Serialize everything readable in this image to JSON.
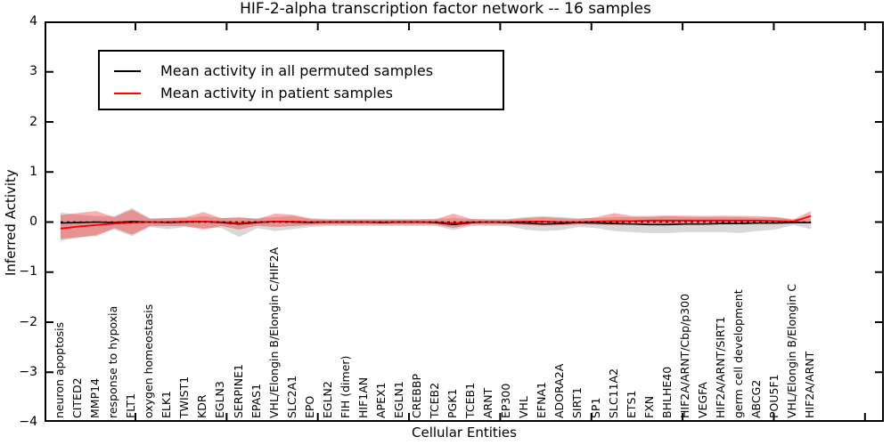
{
  "title": "HIF-2-alpha transcription factor network -- 16 samples",
  "axes": {
    "ylabel": "Inferred Activity",
    "xlabel": "Cellular Entities",
    "yticks": [
      "4",
      "3",
      "2",
      "1",
      "0",
      "−1",
      "−2",
      "−3",
      "−4"
    ]
  },
  "legend": {
    "items": [
      {
        "label": "Mean activity in all permuted samples",
        "color": "#000000"
      },
      {
        "label": "Mean activity in patient samples",
        "color": "#ff0000"
      }
    ]
  },
  "chart_data": {
    "type": "line",
    "title": "HIF-2-alpha transcription factor network -- 16 samples",
    "xlabel": "Cellular Entities",
    "ylabel": "Inferred Activity",
    "ylim": [
      -4,
      4
    ],
    "grid": false,
    "legend_position": "upper left",
    "zero_line": true,
    "categories": [
      "neuron apoptosis",
      "CITED2",
      "MMP14",
      "response to hypoxia",
      "FLT1",
      "oxygen homeostasis",
      "ELK1",
      "TWIST1",
      "KDR",
      "EGLN3",
      "SERPINE1",
      "EPAS1",
      "VHL/Elongin B/Elongin C/HIF2A",
      "SLC2A1",
      "EPO",
      "EGLN2",
      "FIH (dimer)",
      "HIF1AN",
      "APEX1",
      "EGLN1",
      "CREBBP",
      "TCEB2",
      "PGK1",
      "TCEB1",
      "ARNT",
      "EP300",
      "VHL",
      "EFNA1",
      "ADORA2A",
      "SIRT1",
      "SP1",
      "SLC11A2",
      "ETS1",
      "FXN",
      "BHLHE40",
      "HIF2A/ARNT/Cbp/p300",
      "VEGFA",
      "HIF2A/ARNT/SIRT1",
      "germ cell development",
      "ABCG2",
      "POU5F1",
      "VHL/Elongin B/Elongin C",
      "HIF2A/ARNT"
    ],
    "series": [
      {
        "name": "Mean activity in all permuted samples",
        "color": "#000000",
        "values": [
          -0.02,
          -0.01,
          0,
          -0.01,
          0.01,
          0,
          -0.01,
          0,
          0.01,
          -0.01,
          -0.04,
          -0.01,
          0.01,
          0,
          -0.01,
          0,
          0,
          0,
          -0.01,
          0,
          0,
          -0.01,
          -0.05,
          -0.01,
          0,
          -0.01,
          -0.02,
          -0.04,
          -0.03,
          -0.01,
          -0.02,
          -0.03,
          -0.04,
          -0.05,
          -0.05,
          -0.04,
          -0.04,
          -0.03,
          -0.03,
          -0.02,
          -0.02,
          -0.01,
          -0.01
        ]
      },
      {
        "name": "Mean activity in patient samples",
        "color": "#ff0000",
        "values": [
          -0.13,
          -0.09,
          -0.06,
          -0.03,
          -0.01,
          0,
          0,
          0.01,
          0.01,
          0,
          -0.02,
          0,
          0.01,
          0.01,
          0,
          0,
          0,
          0,
          0,
          0,
          0,
          0,
          -0.02,
          0,
          0,
          0,
          0.01,
          0.01,
          0,
          0,
          0.01,
          0.02,
          0.02,
          0.03,
          0.03,
          0.03,
          0.03,
          0.03,
          0.03,
          0.03,
          0.02,
          0.01,
          0.12
        ]
      }
    ],
    "bands": [
      {
        "name": "permuted samples range",
        "color": "#999999",
        "opacity": 0.38,
        "upper": [
          0.19,
          0.15,
          0.12,
          0.12,
          0.28,
          0.08,
          0.08,
          0.08,
          0.12,
          0.08,
          0.08,
          0.08,
          0.1,
          0.12,
          0.08,
          0.06,
          0.06,
          0.06,
          0.06,
          0.06,
          0.06,
          0.06,
          0.08,
          0.06,
          0.06,
          0.06,
          0.1,
          0.12,
          0.1,
          0.08,
          0.08,
          0.1,
          0.1,
          0.1,
          0.12,
          0.1,
          0.1,
          0.1,
          0.1,
          0.08,
          0.1,
          0.06,
          0.06
        ],
        "lower": [
          -0.37,
          -0.32,
          -0.25,
          -0.15,
          -0.28,
          -0.1,
          -0.14,
          -0.1,
          -0.12,
          -0.12,
          -0.3,
          -0.12,
          -0.18,
          -0.14,
          -0.1,
          -0.08,
          -0.08,
          -0.08,
          -0.08,
          -0.08,
          -0.08,
          -0.08,
          -0.16,
          -0.08,
          -0.08,
          -0.08,
          -0.15,
          -0.18,
          -0.16,
          -0.1,
          -0.12,
          -0.18,
          -0.2,
          -0.22,
          -0.22,
          -0.2,
          -0.2,
          -0.2,
          -0.22,
          -0.18,
          -0.15,
          -0.06,
          -0.14
        ]
      },
      {
        "name": "patient samples range",
        "color": "#ff0000",
        "opacity": 0.32,
        "upper": [
          0.14,
          0.18,
          0.22,
          0.1,
          0.25,
          0.06,
          0.08,
          0.1,
          0.2,
          0.08,
          0.1,
          0.06,
          0.17,
          0.15,
          0.06,
          0.05,
          0.05,
          0.05,
          0.05,
          0.05,
          0.05,
          0.06,
          0.17,
          0.06,
          0.05,
          0.05,
          0.08,
          0.1,
          0.08,
          0.06,
          0.1,
          0.18,
          0.12,
          0.12,
          0.13,
          0.13,
          0.12,
          0.13,
          0.12,
          0.12,
          0.1,
          0.05,
          0.22
        ],
        "lower": [
          -0.34,
          -0.3,
          -0.28,
          -0.12,
          -0.25,
          -0.08,
          -0.08,
          -0.08,
          -0.15,
          -0.08,
          -0.15,
          -0.07,
          -0.1,
          -0.08,
          -0.06,
          -0.05,
          -0.05,
          -0.05,
          -0.05,
          -0.05,
          -0.05,
          -0.05,
          -0.12,
          -0.05,
          -0.05,
          -0.05,
          -0.06,
          -0.07,
          -0.06,
          -0.05,
          -0.05,
          -0.06,
          -0.05,
          -0.04,
          -0.04,
          -0.04,
          -0.04,
          -0.04,
          -0.04,
          -0.04,
          -0.04,
          -0.03,
          0.02
        ]
      }
    ]
  }
}
